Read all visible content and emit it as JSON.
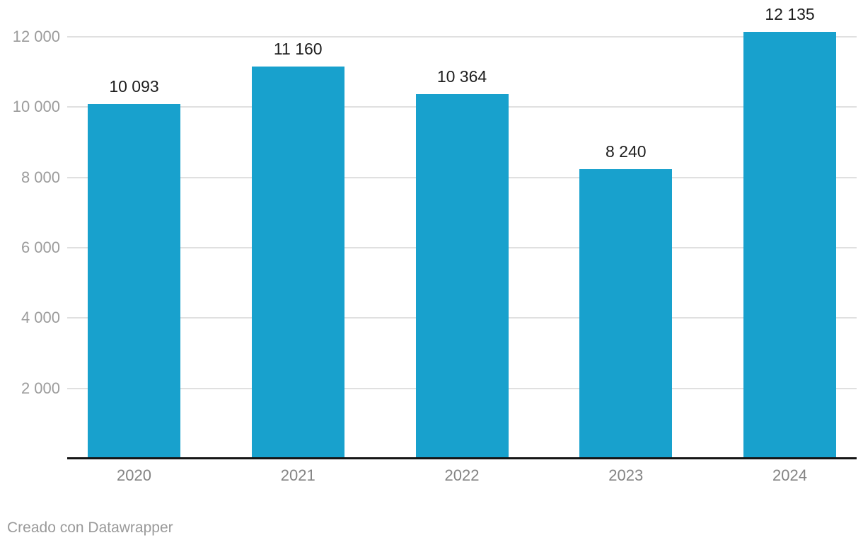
{
  "chart_data": {
    "type": "bar",
    "categories": [
      "2020",
      "2021",
      "2022",
      "2023",
      "2024"
    ],
    "values": [
      10093,
      11160,
      10364,
      8240,
      12135
    ],
    "value_labels": [
      "10 093",
      "11 160",
      "10 364",
      "8 240",
      "12 135"
    ],
    "series": [
      {
        "name": "value",
        "values": [
          10093,
          11160,
          10364,
          8240,
          12135
        ]
      }
    ],
    "title": "",
    "xlabel": "",
    "ylabel": "",
    "ylim": [
      0,
      12135
    ],
    "y_ticks": [
      2000,
      4000,
      6000,
      8000,
      10000,
      12000
    ],
    "y_tick_labels": [
      "2 000",
      "4 000",
      "6 000",
      "8 000",
      "10 000",
      "12 000"
    ],
    "grid": "horizontal",
    "legend": "none",
    "bar_color": "#18a1cd"
  },
  "footer": {
    "credit": "Creado con Datawrapper"
  },
  "colors": {
    "bar": "#18a1cd",
    "gridline": "#e0e0e0",
    "axis_line": "#151515",
    "y_tick_label": "#9c9c9c",
    "x_tick_label": "#848484",
    "value_label": "#1d1d1d",
    "credit": "#9a9a9a",
    "background": "#ffffff"
  }
}
